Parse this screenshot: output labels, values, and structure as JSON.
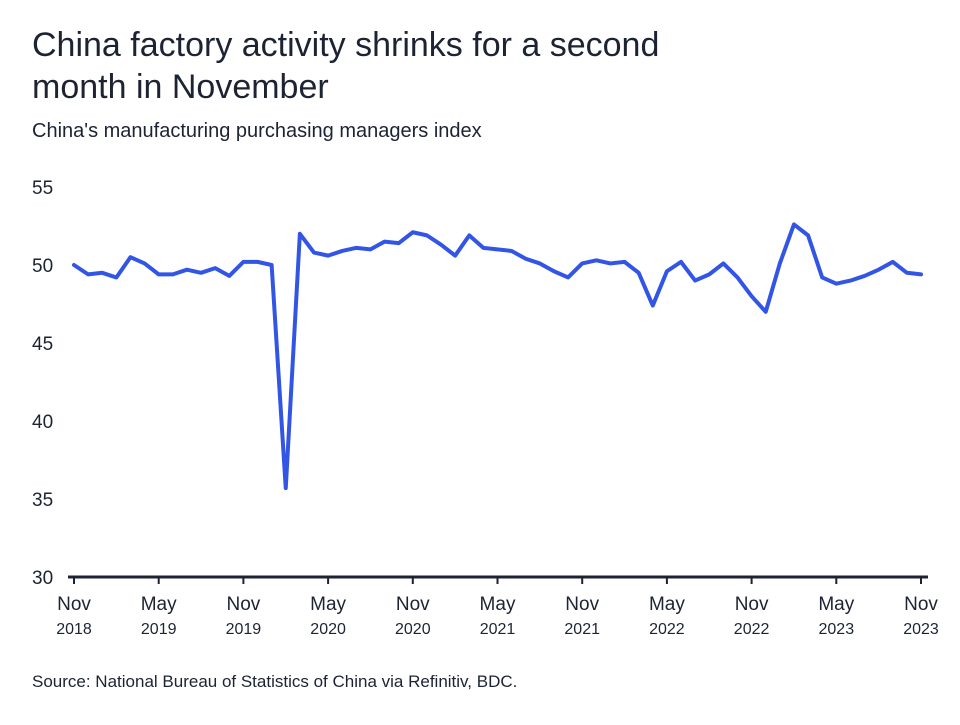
{
  "chart_data": {
    "type": "line",
    "title": "China factory activity shrinks for a second month in November",
    "subtitle": "China's manufacturing purchasing managers index",
    "source": "Source: National Bureau of Statistics of China via Refinitiv, BDC.",
    "ylim": [
      30,
      55
    ],
    "yticks": [
      30,
      35,
      40,
      45,
      50,
      55
    ],
    "xticks": [
      {
        "month": "Nov",
        "year": "2018",
        "index": 0
      },
      {
        "month": "May",
        "year": "2019",
        "index": 6
      },
      {
        "month": "Nov",
        "year": "2019",
        "index": 12
      },
      {
        "month": "May",
        "year": "2020",
        "index": 18
      },
      {
        "month": "Nov",
        "year": "2020",
        "index": 24
      },
      {
        "month": "May",
        "year": "2021",
        "index": 30
      },
      {
        "month": "Nov",
        "year": "2021",
        "index": 36
      },
      {
        "month": "May",
        "year": "2022",
        "index": 42
      },
      {
        "month": "Nov",
        "year": "2022",
        "index": 48
      },
      {
        "month": "May",
        "year": "2023",
        "index": 54
      },
      {
        "month": "Nov",
        "year": "2023",
        "index": 60
      }
    ],
    "grid": false,
    "line_color": "#3355e6",
    "axis_color": "#1d2333",
    "series": [
      {
        "values": [
          50.0,
          49.4,
          49.5,
          49.2,
          50.5,
          50.1,
          49.4,
          49.4,
          49.7,
          49.5,
          49.8,
          49.3,
          50.2,
          50.2,
          50.0,
          35.7,
          52.0,
          50.8,
          50.6,
          50.9,
          51.1,
          51.0,
          51.5,
          51.4,
          52.1,
          51.9,
          51.3,
          50.6,
          51.9,
          51.1,
          51.0,
          50.9,
          50.4,
          50.1,
          49.6,
          49.2,
          50.1,
          50.3,
          50.1,
          50.2,
          49.5,
          47.4,
          49.6,
          50.2,
          49.0,
          49.4,
          50.1,
          49.2,
          48.0,
          47.0,
          50.1,
          52.6,
          51.9,
          49.2,
          48.8,
          49.0,
          49.3,
          49.7,
          50.2,
          49.5,
          49.4
        ]
      }
    ]
  }
}
